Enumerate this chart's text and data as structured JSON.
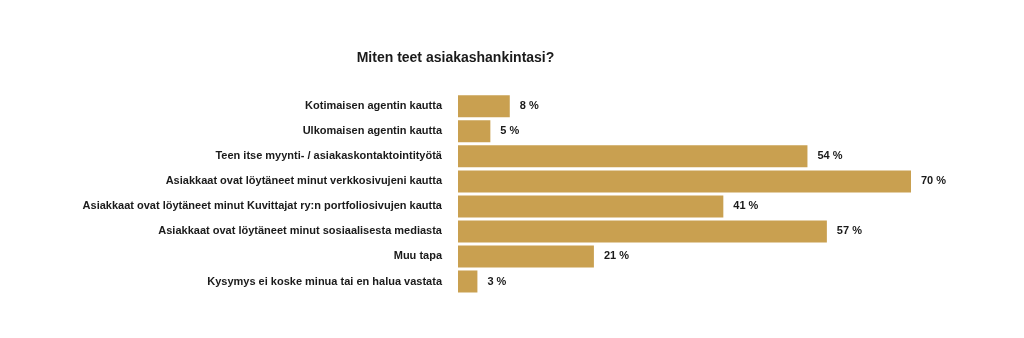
{
  "chart_data": {
    "type": "bar",
    "orientation": "horizontal",
    "title": "Miten teet asiakashankintasi?",
    "categories": [
      "Kotimaisen agentin kautta",
      "Ulkomaisen agentin kautta",
      "Teen itse myynti- / asiakaskontaktointityötä",
      "Asiakkaat ovat löytäneet minut verkkosivujeni kautta",
      "Asiakkaat ovat löytäneet minut Kuvittajat ry:n portfoliosivujen kautta",
      "Asiakkaat ovat löytäneet minut sosiaalisesta mediasta",
      "Muu tapa",
      "Kysymys ei koske minua tai en halua vastata"
    ],
    "values": [
      8,
      5,
      54,
      70,
      41,
      57,
      21,
      3
    ],
    "value_labels": [
      "8 %",
      "5 %",
      "54 %",
      "70 %",
      "41 %",
      "57 %",
      "21 %",
      "3 %"
    ],
    "color": "#c9a050",
    "legend": false
  }
}
